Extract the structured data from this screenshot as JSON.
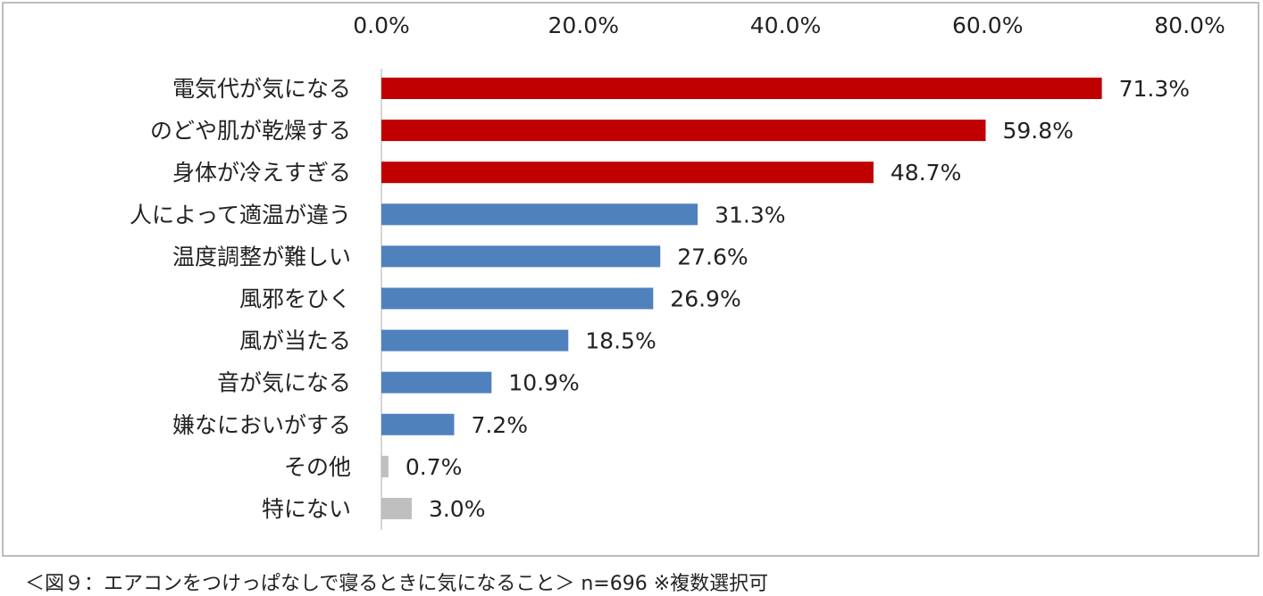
{
  "chart_data": {
    "type": "bar",
    "orientation": "horizontal",
    "categories": [
      "電気代が気になる",
      "のどや肌が乾燥する",
      "身体が冷えすぎる",
      "人によって適温が違う",
      "温度調整が難しい",
      "風邪をひく",
      "風が当たる",
      "音が気になる",
      "嫌なにおいがする",
      "その他",
      "特にない"
    ],
    "values": [
      71.3,
      59.8,
      48.7,
      31.3,
      27.6,
      26.9,
      18.5,
      10.9,
      7.2,
      0.7,
      3.0
    ],
    "data_labels": [
      "71.3%",
      "59.8%",
      "48.7%",
      "31.3%",
      "27.6%",
      "26.9%",
      "18.5%",
      "10.9%",
      "7.2%",
      "0.7%",
      "3.0%"
    ],
    "colors": [
      "#C00000",
      "#C00000",
      "#C00000",
      "#4F81BD",
      "#4F81BD",
      "#4F81BD",
      "#4F81BD",
      "#4F81BD",
      "#4F81BD",
      "#BFBFBF",
      "#BFBFBF"
    ],
    "xlim": [
      0,
      80
    ],
    "xticks": [
      "0.0%",
      "20.0%",
      "40.0%",
      "60.0%",
      "80.0%"
    ],
    "axis_position": "top",
    "grid": false,
    "legend": "none"
  },
  "caption": "＜図９：エアコンをつけっぱなしで寝るときに気になること＞ n=696 ※複数選択可"
}
